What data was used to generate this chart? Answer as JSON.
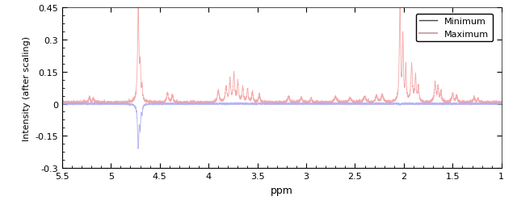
{
  "xlim": [
    5.5,
    1.0
  ],
  "ylim": [
    -0.3,
    0.45
  ],
  "xlabel": "ppm",
  "ylabel": "Intensity (after scaling)",
  "yticks": [
    -0.3,
    -0.15,
    0.0,
    0.15,
    0.3,
    0.45
  ],
  "xticks": [
    5.5,
    5.0,
    4.5,
    4.0,
    3.5,
    3.0,
    2.5,
    2.0,
    1.5,
    1.0
  ],
  "xtick_labels": [
    "5.5",
    "5",
    "4.5",
    "4",
    "3.5",
    "3",
    "2.5",
    "2",
    "1.5",
    "1"
  ],
  "max_color": "#F4A0A0",
  "min_color": "#AAAAEE",
  "legend_min_color": "#444444",
  "legend_max_color": "#CCAAAA",
  "background_color": "#ffffff",
  "legend_labels": [
    "Minimum",
    "Maximum"
  ],
  "figsize": [
    6.4,
    2.55
  ],
  "dpi": 100
}
